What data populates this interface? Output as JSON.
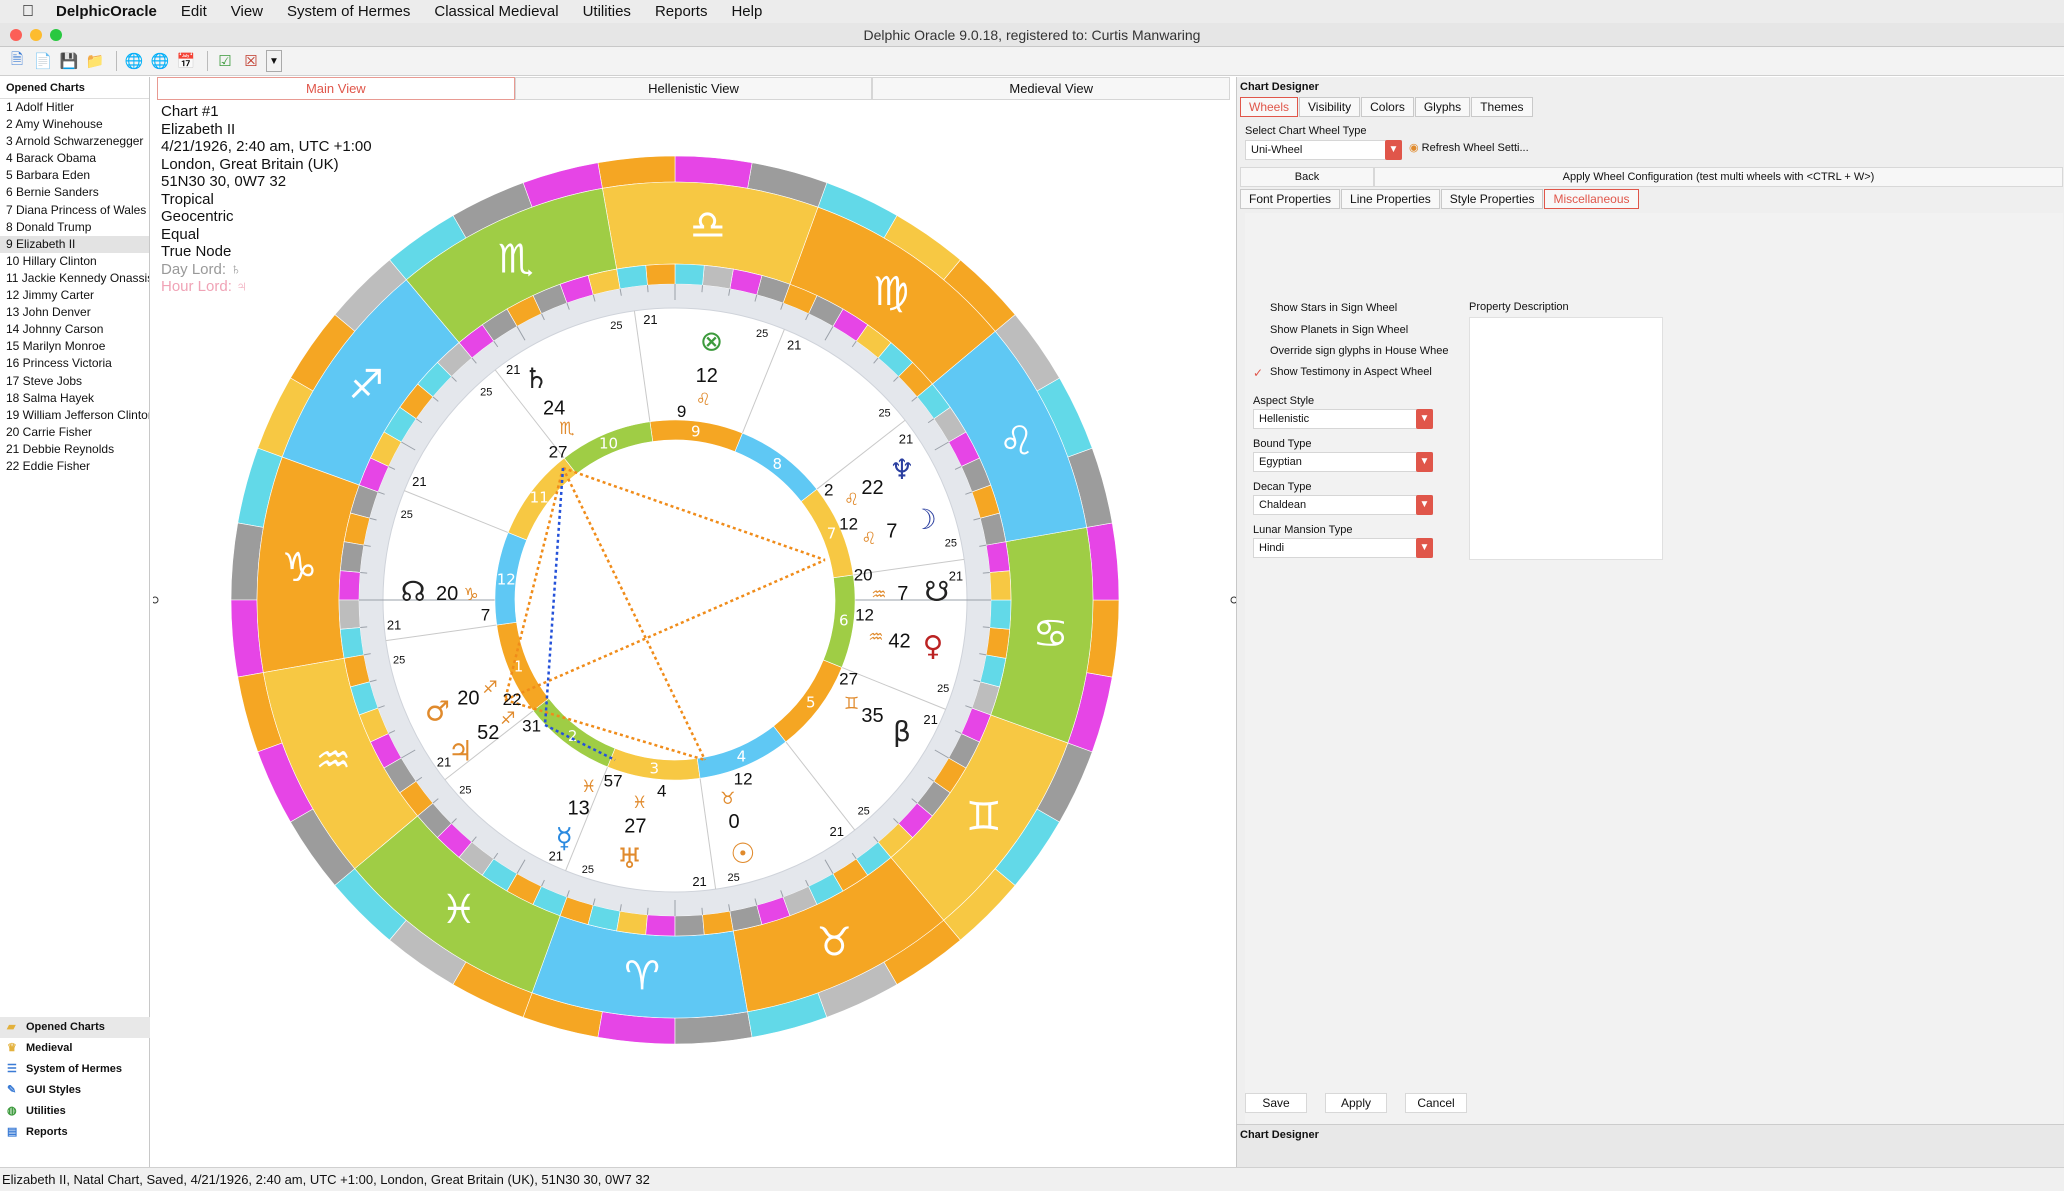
{
  "menubar": {
    "app": "DelphicOracle",
    "items": [
      "Edit",
      "View",
      "System of Hermes",
      "Classical Medieval",
      "Utilities",
      "Reports",
      "Help"
    ]
  },
  "window_title": "Delphic Oracle 9.0.18, registered to: Curtis Manwaring",
  "toolbar_icons": [
    "new-chart-icon",
    "new-document-icon",
    "save-icon",
    "open-folder-icon",
    "globe-icon",
    "globe-remove-icon",
    "calendar-icon",
    "check-icon",
    "close-chart-icon",
    "dropdown-icon"
  ],
  "left_panel": {
    "header": "Opened Charts",
    "charts": [
      "1 Adolf Hitler",
      "2 Amy Winehouse",
      "3 Arnold Schwarzenegger",
      "4 Barack Obama",
      "5 Barbara Eden",
      "6 Bernie Sanders",
      "7 Diana Princess of Wales",
      "8 Donald Trump",
      "9 Elizabeth II",
      "10 Hillary Clinton",
      "11 Jackie Kennedy Onassis",
      "12 Jimmy Carter",
      "13 John Denver",
      "14 Johnny Carson",
      "15 Marilyn Monroe",
      "16 Princess Victoria",
      "17 Steve Jobs",
      "18 Salma Hayek",
      "19 William Jefferson Clinton",
      "20 Carrie Fisher",
      "21 Debbie Reynolds",
      "22 Eddie Fisher"
    ],
    "selected_index": 8,
    "nav": [
      {
        "label": "Opened Charts",
        "icon": "folder-icon"
      },
      {
        "label": "Medieval",
        "icon": "crown-icon"
      },
      {
        "label": "System of Hermes",
        "icon": "hermes-icon"
      },
      {
        "label": "GUI Styles",
        "icon": "palette-icon"
      },
      {
        "label": "Utilities",
        "icon": "globe-icon"
      },
      {
        "label": "Reports",
        "icon": "report-icon"
      }
    ]
  },
  "center": {
    "tabs": [
      "Main View",
      "Hellenistic View",
      "Medieval View"
    ],
    "active_tab": 0,
    "info": [
      "Chart #1",
      "Elizabeth II",
      "4/21/1926, 2:40 am, UTC +1:00",
      "London, Great Britain (UK)",
      "51N30 30, 0W7 32",
      "Tropical",
      "Geocentric",
      "Equal",
      "True Node"
    ],
    "day_lord": "Day Lord: ♄",
    "hour_lord": "Hour Lord: ♃",
    "house_numbers": [
      "1",
      "2",
      "3",
      "4",
      "5",
      "6",
      "7",
      "8",
      "9",
      "10",
      "11",
      "12"
    ],
    "cusp_labels": [
      "21",
      "25"
    ],
    "planets": [
      {
        "glyph": "☊",
        "deg": "20",
        "sign": "♑",
        "min": "7"
      },
      {
        "glyph": "☋",
        "deg": "7",
        "sign": "♒",
        "min": "20"
      },
      {
        "glyph": "♀",
        "deg": "42",
        "sign": "♒",
        "min": "12"
      },
      {
        "glyph": "β",
        "deg": "35",
        "sign": "♊",
        "min": "27"
      },
      {
        "glyph": "♆",
        "deg": "22",
        "sign": "♌",
        "min": "2"
      },
      {
        "glyph": "☽",
        "deg": "7",
        "sign": "♌",
        "min": "12"
      },
      {
        "glyph": "♄",
        "deg": "24",
        "sign": "♏",
        "min": "27"
      },
      {
        "glyph": "♂",
        "deg": "20",
        "sign": "♐",
        "min": "22"
      },
      {
        "glyph": "♃",
        "deg": "52",
        "sign": "♐",
        "min": "31"
      },
      {
        "glyph": "☿",
        "deg": "13",
        "sign": "♓",
        "min": "57"
      },
      {
        "glyph": "♅",
        "deg": "27",
        "sign": "♓",
        "min": "4"
      },
      {
        "glyph": "☉",
        "deg": "0",
        "sign": "♉",
        "min": "12"
      },
      {
        "glyph": "⊗",
        "deg": "12",
        "sign": "♌",
        "min": "9"
      }
    ]
  },
  "right_panel": {
    "title": "Chart Designer",
    "tabs": [
      "Wheels",
      "Visibility",
      "Colors",
      "Glyphs",
      "Themes"
    ],
    "select_label": "Select Chart Wheel Type",
    "wheel_type": "Uni-Wheel",
    "refresh_label": "Refresh Wheel Setti...",
    "back_label": "Back",
    "apply_config_label": "Apply Wheel Configuration (test multi wheels with <CTRL + W>)",
    "subtabs": [
      "Font Properties",
      "Line Properties",
      "Style Properties",
      "Miscellaneous"
    ],
    "checkboxes": [
      {
        "label": "Show Stars in Sign Wheel",
        "checked": false
      },
      {
        "label": "Show Planets in Sign Wheel",
        "checked": false
      },
      {
        "label": "Override sign glyphs in House Whee",
        "checked": false
      },
      {
        "label": "Show Testimony in Aspect Wheel",
        "checked": true
      }
    ],
    "aspect_style_label": "Aspect Style",
    "aspect_style": "Hellenistic",
    "bound_type_label": "Bound Type",
    "bound_type": "Egyptian",
    "decan_type_label": "Decan Type",
    "decan_type": "Chaldean",
    "lunar_label": "Lunar Mansion Type",
    "lunar_type": "Hindi",
    "property_description": "Property Description",
    "buttons": [
      "Save",
      "Apply",
      "Cancel"
    ],
    "footer_title": "Chart Designer"
  },
  "status": "Elizabeth II, Natal Chart, Saved, 4/21/1926, 2:40 am, UTC +1:00, London, Great Britain (UK), 51N30 30, 0W7 32"
}
